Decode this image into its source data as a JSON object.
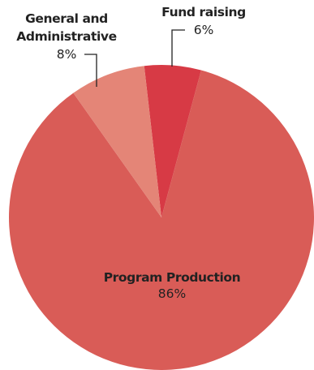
{
  "chart_data": {
    "type": "pie",
    "title": "",
    "slices": [
      {
        "label": "Program Production",
        "value": 86,
        "value_label": "86%",
        "color": "#d95c57"
      },
      {
        "label": "General and Administrative",
        "label_lines": [
          "General and",
          "Administrative"
        ],
        "value": 8,
        "value_label": "8%",
        "color": "#e48577"
      },
      {
        "label": "Fund raising",
        "value": 6,
        "value_label": "6%",
        "color": "#d73a45"
      }
    ],
    "units": "percent",
    "legend": "none",
    "labels": "direct"
  }
}
